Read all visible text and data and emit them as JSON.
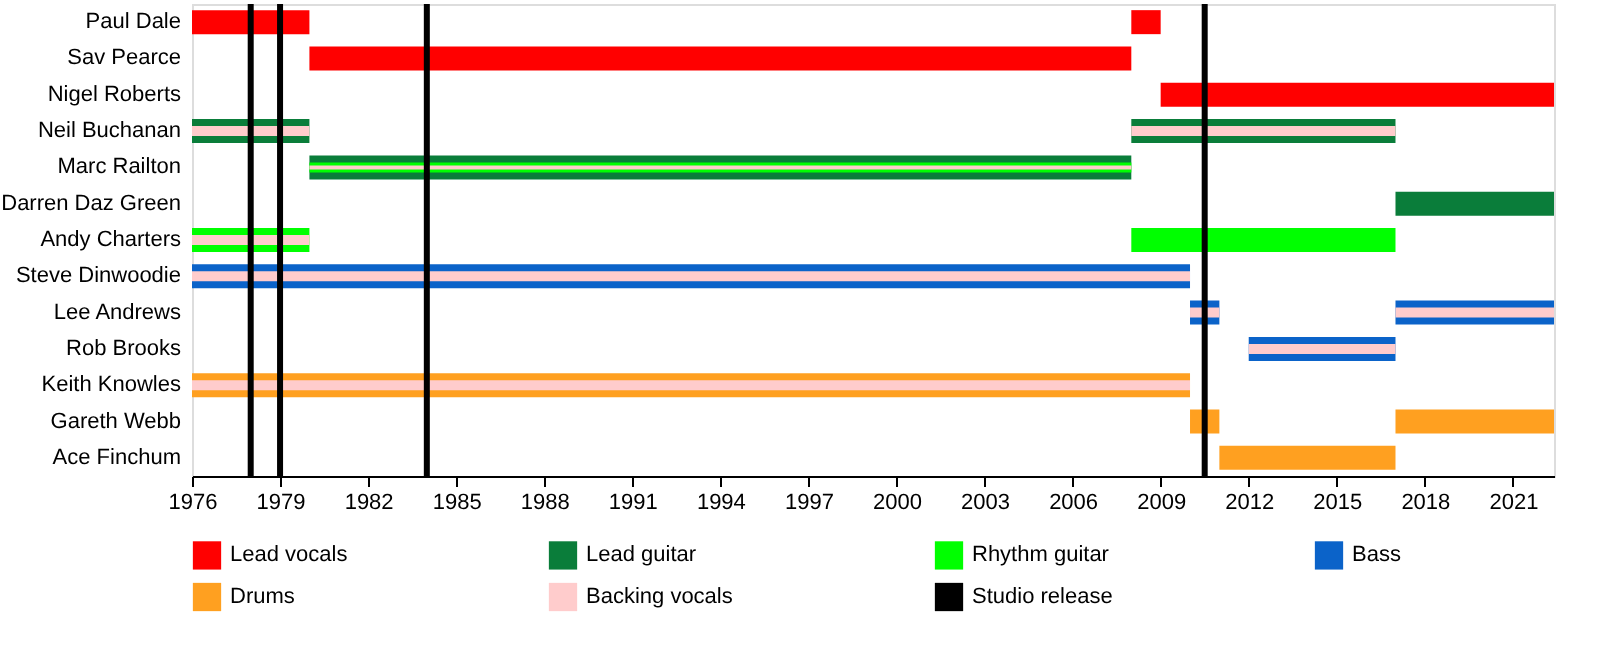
{
  "chart_data": {
    "type": "bar",
    "orientation": "horizontal",
    "categories": [
      "Paul Dale",
      "Sav Pearce",
      "Nigel Roberts",
      "Neil Buchanan",
      "Marc Railton",
      "Darren Daz Green",
      "Andy Charters",
      "Steve Dinwoodie",
      "Lee Andrews",
      "Rob Brooks",
      "Keith Knowles",
      "Gareth Webb",
      "Ace Finchum"
    ],
    "series": [
      {
        "name": "Lead vocals",
        "color": "#ff0000",
        "base": [
          1976,
          1980,
          2009,
          null,
          null,
          null,
          null,
          null,
          null,
          null,
          null,
          null,
          null
        ],
        "values": [
          4,
          28,
          13.4,
          null,
          null,
          null,
          null,
          null,
          null,
          null,
          null,
          null,
          null
        ]
      },
      {
        "color": "#ff0000",
        "base": [
          2008,
          null,
          null,
          null,
          null,
          null,
          null,
          null,
          null,
          null,
          null,
          null,
          null
        ],
        "values": [
          1,
          null,
          null,
          null,
          null,
          null,
          null,
          null,
          null,
          null,
          null,
          null,
          null
        ]
      },
      {
        "name": "Lead guitar",
        "color": "#0a7d3a",
        "base": [
          null,
          null,
          null,
          1976,
          1980,
          2017,
          null,
          null,
          null,
          null,
          null,
          null,
          null
        ],
        "values": [
          null,
          null,
          null,
          4,
          28,
          5.4,
          null,
          null,
          null,
          null,
          null,
          null,
          null
        ]
      },
      {
        "color": "#0a7d3a",
        "base": [
          null,
          null,
          null,
          2008,
          null,
          null,
          null,
          null,
          null,
          null,
          null,
          null,
          null
        ],
        "values": [
          null,
          null,
          null,
          9,
          null,
          null,
          null,
          null,
          null,
          null,
          null,
          null,
          null
        ]
      },
      {
        "name": "Rhythm guitar",
        "color": "#00ff00",
        "base": [
          null,
          null,
          null,
          null,
          1980,
          null,
          1976,
          null,
          null,
          null,
          null,
          null,
          null
        ],
        "values": [
          null,
          null,
          null,
          null,
          28,
          null,
          4,
          null,
          null,
          null,
          null,
          null,
          null
        ]
      },
      {
        "color": "#00ff00",
        "base": [
          null,
          null,
          null,
          null,
          null,
          null,
          2008,
          null,
          null,
          null,
          null,
          null,
          null
        ],
        "values": [
          null,
          null,
          null,
          null,
          null,
          null,
          9,
          null,
          null,
          null,
          null,
          null,
          null
        ]
      },
      {
        "name": "Bass",
        "color": "#0b63c9",
        "base": [
          null,
          null,
          null,
          null,
          null,
          null,
          null,
          1976,
          2010,
          2012,
          null,
          null,
          null
        ],
        "values": [
          null,
          null,
          null,
          null,
          null,
          null,
          null,
          34,
          1,
          5,
          null,
          null,
          null
        ]
      },
      {
        "color": "#0b63c9",
        "base": [
          null,
          null,
          null,
          null,
          null,
          null,
          null,
          null,
          2017,
          null,
          null,
          null,
          null
        ],
        "values": [
          null,
          null,
          null,
          null,
          null,
          null,
          null,
          null,
          5.4,
          null,
          null,
          null,
          null
        ]
      },
      {
        "name": "Drums",
        "color": "#ffa020",
        "base": [
          null,
          null,
          null,
          null,
          null,
          null,
          null,
          null,
          null,
          null,
          1976,
          2010,
          2011
        ],
        "values": [
          null,
          null,
          null,
          null,
          null,
          null,
          null,
          null,
          null,
          null,
          34,
          1,
          6
        ]
      },
      {
        "color": "#ffa020",
        "base": [
          null,
          null,
          null,
          null,
          null,
          null,
          null,
          null,
          null,
          null,
          null,
          2017,
          null
        ],
        "values": [
          null,
          null,
          null,
          null,
          null,
          null,
          null,
          null,
          null,
          null,
          null,
          5.4,
          null
        ]
      },
      {
        "name": "Backing vocals",
        "color": "#ffcccc",
        "base": [
          null,
          null,
          null,
          1976,
          1980,
          null,
          1976,
          1976,
          2010,
          2012,
          1976,
          null,
          null
        ],
        "values": [
          null,
          null,
          null,
          4,
          28,
          null,
          4,
          34,
          1,
          5,
          34,
          null,
          null
        ]
      },
      {
        "color": "#ffcccc",
        "base": [
          null,
          null,
          null,
          2008,
          null,
          null,
          null,
          null,
          2017,
          null,
          null,
          null,
          null
        ],
        "values": [
          null,
          null,
          null,
          9,
          null,
          null,
          null,
          null,
          5.4,
          null,
          null,
          null,
          null
        ]
      }
    ],
    "ref_lines": [
      {
        "axis": "x",
        "value": 1978,
        "label": "Studio release",
        "color": "#000000"
      },
      {
        "axis": "x",
        "value": 1979,
        "color": "#000000"
      },
      {
        "axis": "x",
        "value": 1984,
        "color": "#000000"
      },
      {
        "axis": "x",
        "value": 2010.5,
        "color": "#000000"
      }
    ],
    "xlim": [
      1976,
      2022.4
    ],
    "xticks": [
      1976,
      1979,
      1982,
      1985,
      1988,
      1991,
      1994,
      1997,
      2000,
      2003,
      2006,
      2009,
      2012,
      2015,
      2018,
      2021
    ],
    "legend": "bottom",
    "grid": false
  }
}
